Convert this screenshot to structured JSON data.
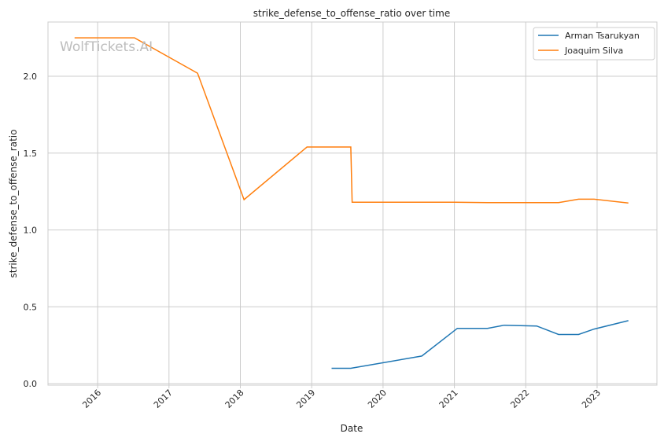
{
  "chart_data": {
    "type": "line",
    "title": "strike_defense_to_offense_ratio over time",
    "xlabel": "Date",
    "ylabel": "strike_defense_to_offense_ratio",
    "watermark": "WolfTickets.AI",
    "xlim": [
      "2015-04-22",
      "2023-11-03"
    ],
    "ylim": [
      -0.01,
      2.353
    ],
    "x_ticks": [
      "2016",
      "2017",
      "2018",
      "2019",
      "2020",
      "2021",
      "2022",
      "2023"
    ],
    "y_ticks": [
      "0.0",
      "0.5",
      "1.0",
      "1.5",
      "2.0"
    ],
    "grid": true,
    "legend_position": "top-right",
    "series": [
      {
        "name": "Arman Tsarukyan",
        "color": "#1f77b4",
        "x": [
          "2019-04-13",
          "2019-07-20",
          "2020-07-18",
          "2021-01-16",
          "2021-06-19",
          "2021-09-13",
          "2022-02-26",
          "2022-06-18",
          "2022-09-28",
          "2022-12-17",
          "2023-06-10"
        ],
        "y": [
          0.1,
          0.1,
          0.18,
          0.36,
          0.36,
          0.38,
          0.375,
          0.32,
          0.32,
          0.355,
          0.41
        ]
      },
      {
        "name": "Joaquim Silva",
        "color": "#ff7f0e",
        "x": [
          "2015-09-05",
          "2016-07-08",
          "2017-05-27",
          "2018-01-20",
          "2018-12-08",
          "2019-07-20",
          "2019-07-27",
          "2021-01-01",
          "2021-06-19",
          "2022-06-18",
          "2022-09-28",
          "2022-12-17",
          "2023-06-10"
        ],
        "y": [
          2.25,
          2.25,
          2.02,
          1.197,
          1.54,
          1.54,
          1.18,
          1.18,
          1.178,
          1.178,
          1.2,
          1.2,
          1.175
        ]
      }
    ]
  }
}
